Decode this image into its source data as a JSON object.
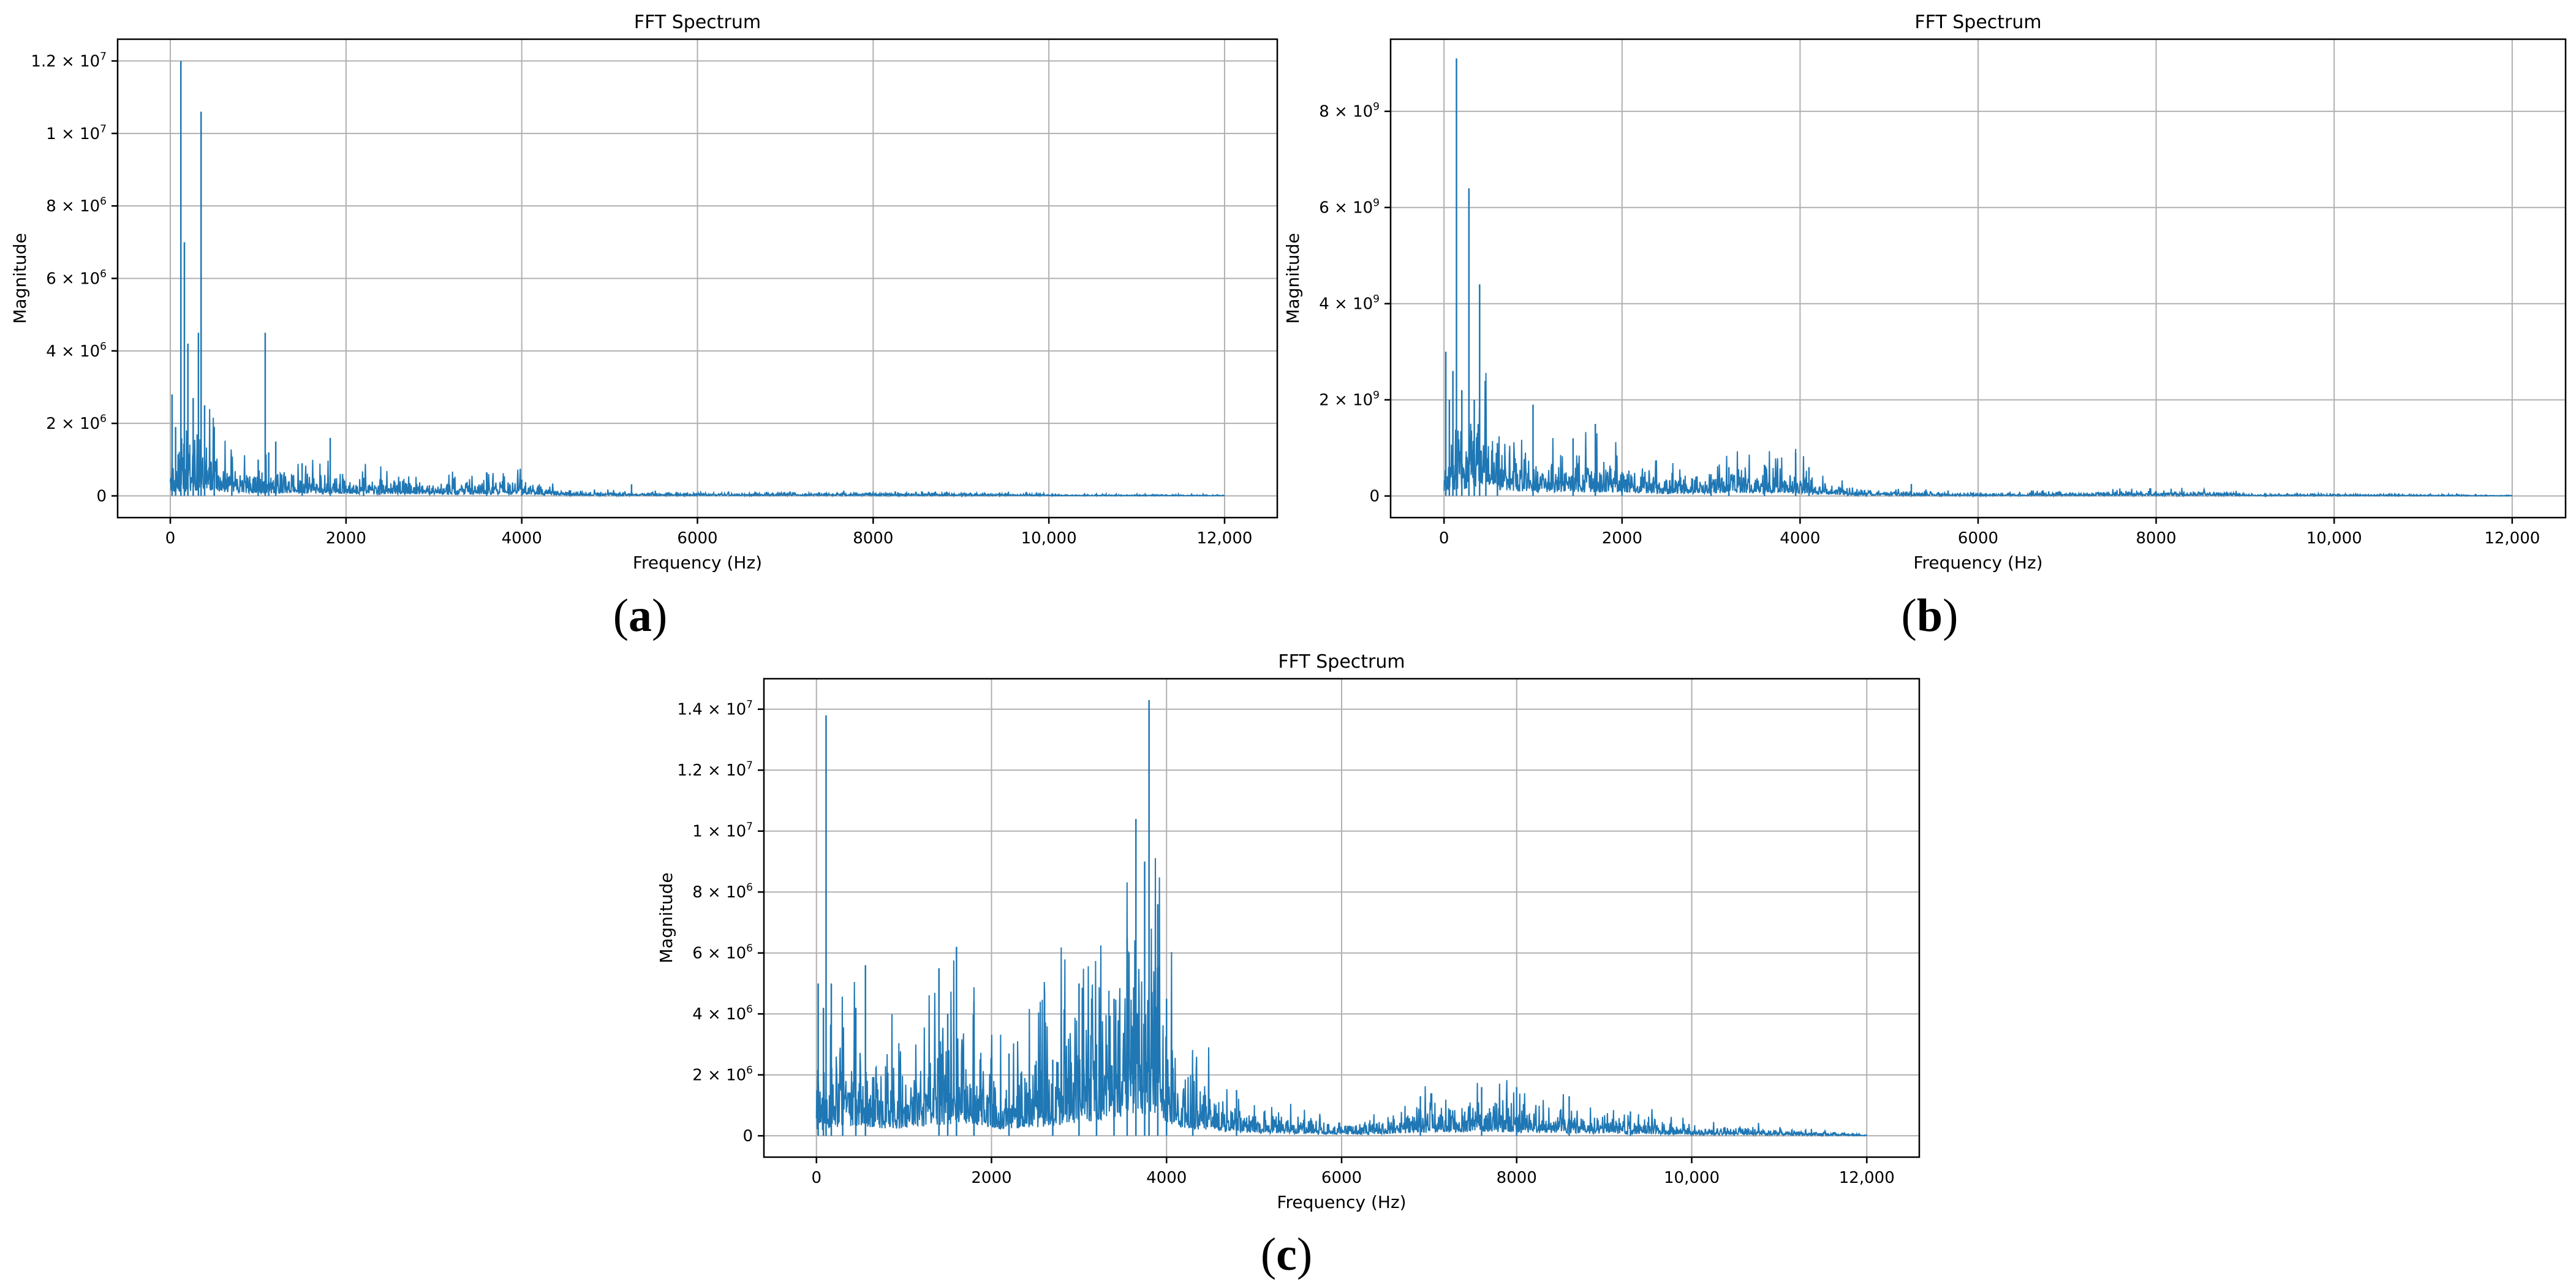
{
  "colors": {
    "series": "#1f77b4",
    "grid": "#b0b0b0"
  },
  "chart_data": [
    {
      "panel": "(a)",
      "type": "line",
      "title": "FFT Spectrum",
      "xlabel": "Frequency (Hz)",
      "ylabel": "Magnitude",
      "xlim": [
        -600,
        12600
      ],
      "ylim": [
        -600000,
        12600000
      ],
      "grid": true,
      "xticks": [
        0,
        2000,
        4000,
        6000,
        8000,
        10000,
        12000
      ],
      "xtick_labels": [
        "0",
        "2000",
        "4000",
        "6000",
        "8000",
        "10,000",
        "12,000"
      ],
      "yticks": [
        0,
        2000000,
        4000000,
        6000000,
        8000000,
        10000000,
        12000000
      ],
      "ytick_labels": [
        {
          "base": "0",
          "exp": ""
        },
        {
          "base": "2 × 10",
          "exp": "6"
        },
        {
          "base": "4 × 10",
          "exp": "6"
        },
        {
          "base": "6 × 10",
          "exp": "6"
        },
        {
          "base": "8 × 10",
          "exp": "6"
        },
        {
          "base": "1 × 10",
          "exp": "7"
        },
        {
          "base": "1.2 × 10",
          "exp": "7"
        }
      ],
      "series": [
        {
          "peaks": [
            [
              20,
              2800000
            ],
            [
              60,
              1900000
            ],
            [
              120,
              12000000
            ],
            [
              160,
              7000000
            ],
            [
              200,
              4200000
            ],
            [
              260,
              2700000
            ],
            [
              320,
              4500000
            ],
            [
              350,
              10600000
            ],
            [
              390,
              2500000
            ],
            [
              500,
              1900000
            ],
            [
              700,
              1000000
            ],
            [
              1000,
              1000000
            ],
            [
              1080,
              4500000
            ],
            [
              1120,
              1200000
            ],
            [
              1200,
              1500000
            ],
            [
              1500,
              900000
            ],
            [
              1820,
              1600000
            ],
            [
              2200,
              500000
            ],
            [
              3600,
              650000
            ],
            [
              4000,
              450000
            ],
            [
              5250,
              320000
            ],
            [
              8000,
              120000
            ]
          ],
          "envelope": [
            [
              0,
              600000
            ],
            [
              400,
              1100000
            ],
            [
              600,
              600000
            ],
            [
              1000,
              450000
            ],
            [
              1500,
              400000
            ],
            [
              2000,
              380000
            ],
            [
              2500,
              300000
            ],
            [
              3000,
              260000
            ],
            [
              3500,
              270000
            ],
            [
              4000,
              300000
            ],
            [
              4300,
              160000
            ],
            [
              4500,
              90000
            ],
            [
              5000,
              70000
            ],
            [
              6000,
              55000
            ],
            [
              7000,
              50000
            ],
            [
              8000,
              65000
            ],
            [
              9000,
              50000
            ],
            [
              9700,
              50000
            ],
            [
              10000,
              25000
            ],
            [
              11000,
              22000
            ],
            [
              12000,
              15000
            ]
          ]
        }
      ]
    },
    {
      "panel": "(b)",
      "type": "line",
      "title": "FFT Spectrum",
      "xlabel": "Frequency (Hz)",
      "ylabel": "Magnitude",
      "xlim": [
        -600,
        12600
      ],
      "ylim": [
        -450000000,
        9500000000
      ],
      "grid": true,
      "xticks": [
        0,
        2000,
        4000,
        6000,
        8000,
        10000,
        12000
      ],
      "xtick_labels": [
        "0",
        "2000",
        "4000",
        "6000",
        "8000",
        "10,000",
        "12,000"
      ],
      "yticks": [
        0,
        2000000000,
        4000000000,
        6000000000,
        8000000000
      ],
      "ytick_labels": [
        {
          "base": "0",
          "exp": ""
        },
        {
          "base": "2 × 10",
          "exp": "9"
        },
        {
          "base": "4 × 10",
          "exp": "9"
        },
        {
          "base": "6 × 10",
          "exp": "9"
        },
        {
          "base": "8 × 10",
          "exp": "9"
        }
      ],
      "series": [
        {
          "peaks": [
            [
              20,
              3000000000
            ],
            [
              60,
              2000000000
            ],
            [
              100,
              2600000000
            ],
            [
              140,
              9100000000
            ],
            [
              200,
              2200000000
            ],
            [
              280,
              6400000000
            ],
            [
              340,
              2000000000
            ],
            [
              400,
              4400000000
            ],
            [
              470,
              1900000000
            ],
            [
              600,
              1100000000
            ],
            [
              1000,
              1900000000
            ],
            [
              1450,
              1200000000
            ],
            [
              1700,
              1500000000
            ],
            [
              2000,
              500000000
            ],
            [
              3000,
              450000000
            ],
            [
              3200,
              600000000
            ],
            [
              3600,
              650000000
            ],
            [
              3950,
              900000000
            ],
            [
              4100,
              600000000
            ],
            [
              5250,
              250000000
            ],
            [
              8000,
              100000000
            ]
          ],
          "envelope": [
            [
              0,
              700000000
            ],
            [
              400,
              1100000000
            ],
            [
              700,
              700000000
            ],
            [
              1000,
              500000000
            ],
            [
              1500,
              550000000
            ],
            [
              2000,
              450000000
            ],
            [
              2500,
              300000000
            ],
            [
              3000,
              350000000
            ],
            [
              3500,
              400000000
            ],
            [
              4000,
              400000000
            ],
            [
              4200,
              200000000
            ],
            [
              4600,
              100000000
            ],
            [
              5000,
              70000000
            ],
            [
              6000,
              40000000
            ],
            [
              7000,
              50000000
            ],
            [
              8000,
              70000000
            ],
            [
              8800,
              60000000
            ],
            [
              9000,
              30000000
            ],
            [
              10000,
              25000000
            ],
            [
              11000,
              20000000
            ],
            [
              12000,
              10000000
            ]
          ]
        }
      ]
    },
    {
      "panel": "(c)",
      "type": "line",
      "title": "FFT Spectrum",
      "xlabel": "Frequency (Hz)",
      "ylabel": "Magnitude",
      "xlim": [
        -600,
        12600
      ],
      "ylim": [
        -700000,
        15000000
      ],
      "grid": true,
      "xticks": [
        0,
        2000,
        4000,
        6000,
        8000,
        10000,
        12000
      ],
      "xtick_labels": [
        "0",
        "2000",
        "4000",
        "6000",
        "8000",
        "10,000",
        "12,000"
      ],
      "yticks": [
        0,
        2000000,
        4000000,
        6000000,
        8000000,
        10000000,
        12000000,
        14000000
      ],
      "ytick_labels": [
        {
          "base": "0",
          "exp": ""
        },
        {
          "base": "2 × 10",
          "exp": "6"
        },
        {
          "base": "4 × 10",
          "exp": "6"
        },
        {
          "base": "6 × 10",
          "exp": "6"
        },
        {
          "base": "8 × 10",
          "exp": "6"
        },
        {
          "base": "1 × 10",
          "exp": "7"
        },
        {
          "base": "1.2 × 10",
          "exp": "7"
        },
        {
          "base": "1.4 × 10",
          "exp": "7"
        }
      ],
      "series": [
        {
          "peaks": [
            [
              20,
              5000000
            ],
            [
              80,
              4200000
            ],
            [
              110,
              13800000
            ],
            [
              170,
              5000000
            ],
            [
              300,
              2500000
            ],
            [
              450,
              4200000
            ],
            [
              560,
              5600000
            ],
            [
              1400,
              5500000
            ],
            [
              1500,
              4000000
            ],
            [
              1600,
              6200000
            ],
            [
              1800,
              4400000
            ],
            [
              2200,
              2700000
            ],
            [
              2700,
              2500000
            ],
            [
              3000,
              5000000
            ],
            [
              3200,
              3000000
            ],
            [
              3400,
              4500000
            ],
            [
              3550,
              6500000
            ],
            [
              3650,
              10400000
            ],
            [
              3750,
              9000000
            ],
            [
              3800,
              14300000
            ],
            [
              3900,
              7600000
            ],
            [
              4000,
              4500000
            ],
            [
              4300,
              2000000
            ],
            [
              4800,
              1500000
            ],
            [
              6900,
              1300000
            ],
            [
              7600,
              1600000
            ],
            [
              8000,
              1600000
            ],
            [
              8600,
              1300000
            ],
            [
              9300,
              800000
            ]
          ],
          "envelope": [
            [
              0,
              900000
            ],
            [
              300,
              2200000
            ],
            [
              600,
              1800000
            ],
            [
              900,
              1500000
            ],
            [
              1200,
              2000000
            ],
            [
              1500,
              2500000
            ],
            [
              1800,
              2400000
            ],
            [
              2100,
              1400000
            ],
            [
              2500,
              1800000
            ],
            [
              3000,
              2800000
            ],
            [
              3300,
              3400000
            ],
            [
              3600,
              4500000
            ],
            [
              3900,
              4000000
            ],
            [
              4100,
              2000000
            ],
            [
              4400,
              1200000
            ],
            [
              5000,
              600000
            ],
            [
              5500,
              400000
            ],
            [
              6000,
              300000
            ],
            [
              6500,
              400000
            ],
            [
              7000,
              700000
            ],
            [
              7600,
              800000
            ],
            [
              8200,
              700000
            ],
            [
              8700,
              500000
            ],
            [
              9300,
              400000
            ],
            [
              10000,
              220000
            ],
            [
              11000,
              150000
            ],
            [
              11500,
              100000
            ],
            [
              12000,
              20000
            ]
          ]
        }
      ]
    }
  ]
}
